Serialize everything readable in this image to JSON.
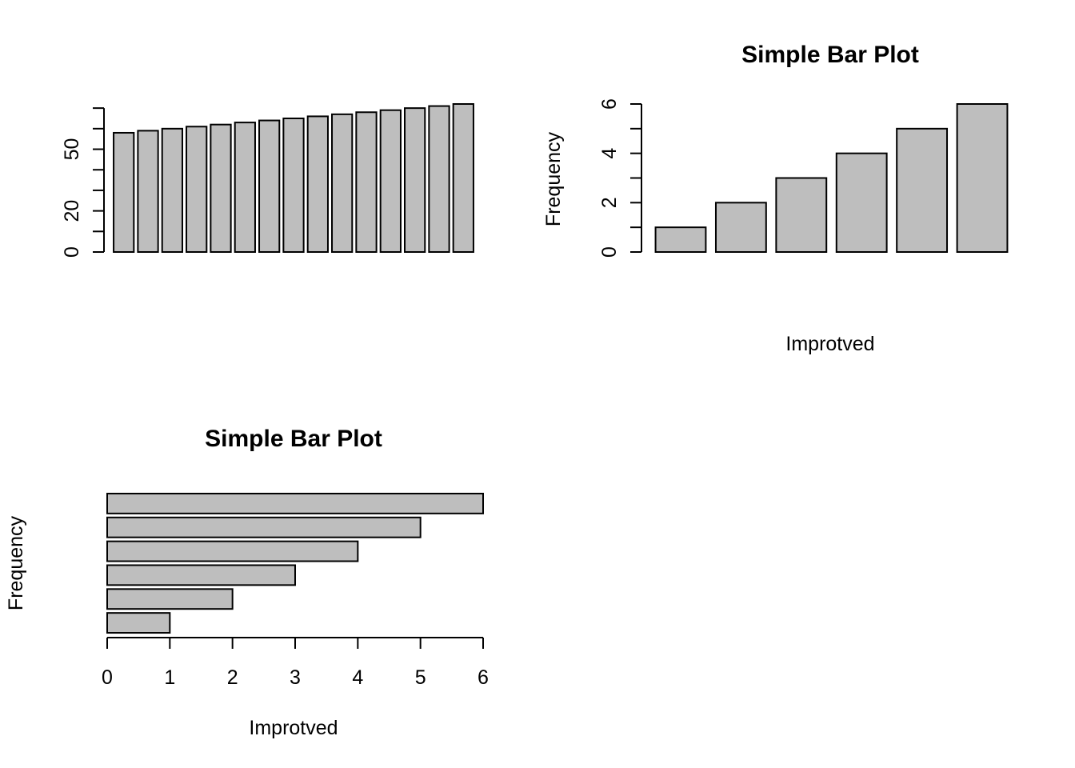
{
  "colors": {
    "bar_fill": "#bebebe",
    "bar_stroke": "#000000",
    "background": "#ffffff"
  },
  "chart_data": [
    {
      "type": "bar",
      "orientation": "vertical",
      "title": "",
      "xlabel": "",
      "ylabel": "",
      "categories": [
        "",
        "",
        "",
        "",
        "",
        "",
        "",
        "",
        "",
        "",
        "",
        "",
        "",
        "",
        ""
      ],
      "values": [
        58,
        59,
        60,
        61,
        62,
        63,
        64,
        65,
        66,
        67,
        68,
        69,
        70,
        71,
        72
      ],
      "ylim": [
        0,
        72
      ],
      "y_ticks": [
        0,
        10,
        20,
        30,
        40,
        50,
        60,
        70
      ],
      "y_tick_labels": [
        "0",
        "",
        "20",
        "",
        "",
        "50",
        "",
        ""
      ],
      "grid": false
    },
    {
      "type": "bar",
      "orientation": "vertical",
      "title": "Simple Bar Plot",
      "xlabel": "Improtved",
      "ylabel": "Frequency",
      "categories": [
        "",
        "",
        "",
        "",
        "",
        ""
      ],
      "values": [
        1,
        2,
        3,
        4,
        5,
        6
      ],
      "ylim": [
        0,
        6
      ],
      "y_ticks": [
        0,
        1,
        2,
        3,
        4,
        5,
        6
      ],
      "y_tick_labels": [
        "0",
        "",
        "2",
        "",
        "4",
        "",
        "6"
      ],
      "grid": false
    },
    {
      "type": "bar",
      "orientation": "horizontal",
      "title": "Simple Bar Plot",
      "xlabel": "Improtved",
      "ylabel": "Frequency",
      "categories": [
        "",
        "",
        "",
        "",
        "",
        ""
      ],
      "values": [
        1,
        2,
        3,
        4,
        5,
        6
      ],
      "xlim": [
        0,
        6
      ],
      "x_ticks": [
        0,
        1,
        2,
        3,
        4,
        5,
        6
      ],
      "x_tick_labels": [
        "0",
        "1",
        "2",
        "3",
        "4",
        "5",
        "6"
      ],
      "grid": false
    }
  ]
}
